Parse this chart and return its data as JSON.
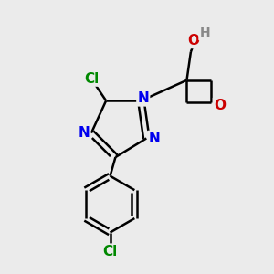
{
  "bg_color": "#ebebeb",
  "bond_color": "#000000",
  "bond_width": 1.8,
  "atom_colors": {
    "N": "#0000ee",
    "O_ring": "#cc0000",
    "O_oh": "#cc0000",
    "Cl": "#008800",
    "H": "#888888",
    "C": "#000000"
  }
}
